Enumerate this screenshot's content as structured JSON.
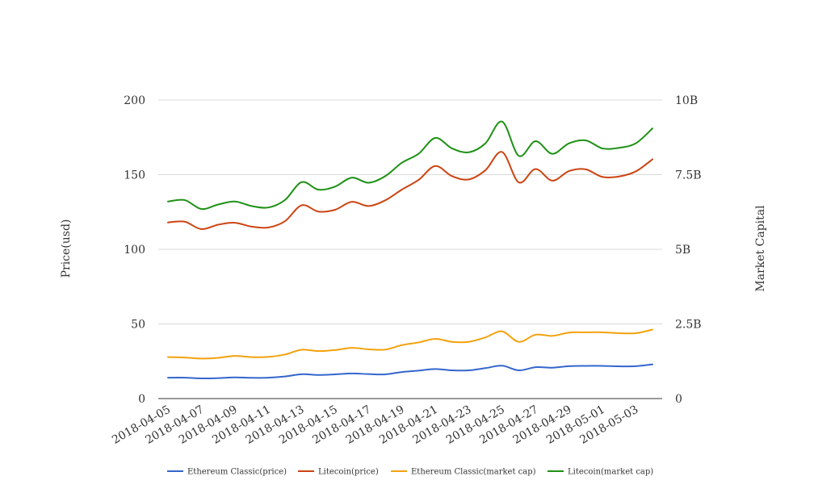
{
  "chart_data": {
    "type": "line",
    "title": "",
    "x": [
      "2018-04-05",
      "2018-04-06",
      "2018-04-07",
      "2018-04-08",
      "2018-04-09",
      "2018-04-10",
      "2018-04-11",
      "2018-04-12",
      "2018-04-13",
      "2018-04-14",
      "2018-04-15",
      "2018-04-16",
      "2018-04-17",
      "2018-04-18",
      "2018-04-19",
      "2018-04-20",
      "2018-04-21",
      "2018-04-22",
      "2018-04-23",
      "2018-04-24",
      "2018-04-25",
      "2018-04-26",
      "2018-04-27",
      "2018-04-28",
      "2018-04-29",
      "2018-04-30",
      "2018-05-01",
      "2018-05-02",
      "2018-05-03",
      "2018-05-04"
    ],
    "x_tick_labels": [
      "2018-04-05",
      "2018-04-07",
      "2018-04-09",
      "2018-04-11",
      "2018-04-13",
      "2018-04-15",
      "2018-04-17",
      "2018-04-19",
      "2018-04-21",
      "2018-04-23",
      "2018-04-25",
      "2018-04-27",
      "2018-04-29",
      "2018-05-01",
      "2018-05-03"
    ],
    "y_left": {
      "label": "Price(usd)",
      "lim": [
        0,
        200
      ],
      "ticks": [
        0,
        50,
        100,
        150,
        200
      ],
      "tick_labels": [
        "0",
        "50",
        "100",
        "150",
        "200"
      ]
    },
    "y_right": {
      "label": "Market Capital",
      "lim": [
        0,
        10000000000
      ],
      "ticks": [
        0,
        2500000000,
        5000000000,
        7500000000,
        10000000000
      ],
      "tick_labels": [
        "0",
        "2.5B",
        "5B",
        "7.5B",
        "10B"
      ]
    },
    "grid": true,
    "legend_position": "bottom",
    "series": [
      {
        "name": "Ethereum Classic(price)",
        "axis": "left",
        "color": "#3366cc",
        "values": [
          14,
          14,
          13.5,
          13.7,
          14.2,
          13.9,
          14,
          14.8,
          16.3,
          15.8,
          16.2,
          16.8,
          16.4,
          16.2,
          17.8,
          18.7,
          19.8,
          18.9,
          18.9,
          20.4,
          22,
          18.9,
          21,
          20.7,
          21.7,
          21.9,
          21.9,
          21.6,
          21.7,
          22.9
        ]
      },
      {
        "name": "Litecoin(price)",
        "axis": "left",
        "color": "#cc4411",
        "values": [
          118,
          118.5,
          113.5,
          116.5,
          117.8,
          115.2,
          114.6,
          118.8,
          129.5,
          125.3,
          126.5,
          131.8,
          129,
          132.8,
          140,
          146.5,
          155.8,
          149,
          146.8,
          153,
          165.2,
          144.8,
          153.8,
          146,
          152.4,
          153.6,
          148.5,
          148.8,
          152.2,
          160.3
        ]
      },
      {
        "name": "Ethereum Classic(market cap)",
        "axis": "right",
        "color": "#f3a10d",
        "values": [
          1390000000,
          1375000000,
          1340000000,
          1365000000,
          1430000000,
          1390000000,
          1395000000,
          1475000000,
          1635000000,
          1590000000,
          1625000000,
          1700000000,
          1650000000,
          1640000000,
          1790000000,
          1880000000,
          2000000000,
          1900000000,
          1900000000,
          2050000000,
          2250000000,
          1900000000,
          2140000000,
          2100000000,
          2210000000,
          2220000000,
          2220000000,
          2190000000,
          2190000000,
          2310000000
        ]
      },
      {
        "name": "Litecoin(market cap)",
        "axis": "right",
        "color": "#1e9115",
        "values": [
          6600000000,
          6650000000,
          6350000000,
          6500000000,
          6600000000,
          6450000000,
          6400000000,
          6650000000,
          7250000000,
          7000000000,
          7100000000,
          7400000000,
          7230000000,
          7450000000,
          7900000000,
          8200000000,
          8730000000,
          8380000000,
          8250000000,
          8550000000,
          9280000000,
          8130000000,
          8620000000,
          8200000000,
          8550000000,
          8650000000,
          8380000000,
          8400000000,
          8550000000,
          9050000000
        ]
      }
    ]
  }
}
